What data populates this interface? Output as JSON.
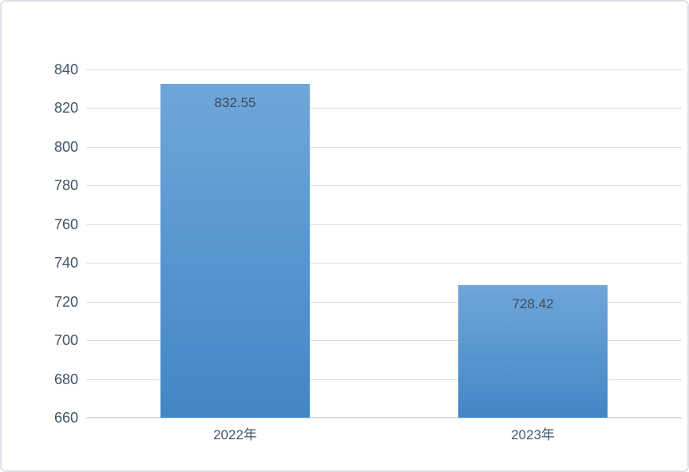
{
  "window": {
    "background_color": "#ffffff",
    "border_color": "#dce1e8"
  },
  "chart_data": {
    "type": "bar",
    "title": "",
    "xlabel": "",
    "ylabel": "",
    "categories": [
      "2022年",
      "2023年"
    ],
    "values": [
      832.55,
      728.42
    ],
    "data_labels": [
      "832.55",
      "728.42"
    ],
    "ylim": [
      660,
      840
    ],
    "ytick_step": 20,
    "ytick_labels": [
      "660",
      "680",
      "700",
      "720",
      "740",
      "760",
      "780",
      "800",
      "820",
      "840"
    ],
    "grid": true,
    "legend_position": "none",
    "data_label_position": "inside-end",
    "bar_gradient_top_color": "#6fa6da",
    "bar_gradient_bottom_color": "#4286c6",
    "gridline_color": "#d9dde3",
    "axis_line_color": "#d9dee4",
    "tick_label_color": "#44546a",
    "data_label_color": "#3f4a5a",
    "category_label_color": "#44546a"
  }
}
